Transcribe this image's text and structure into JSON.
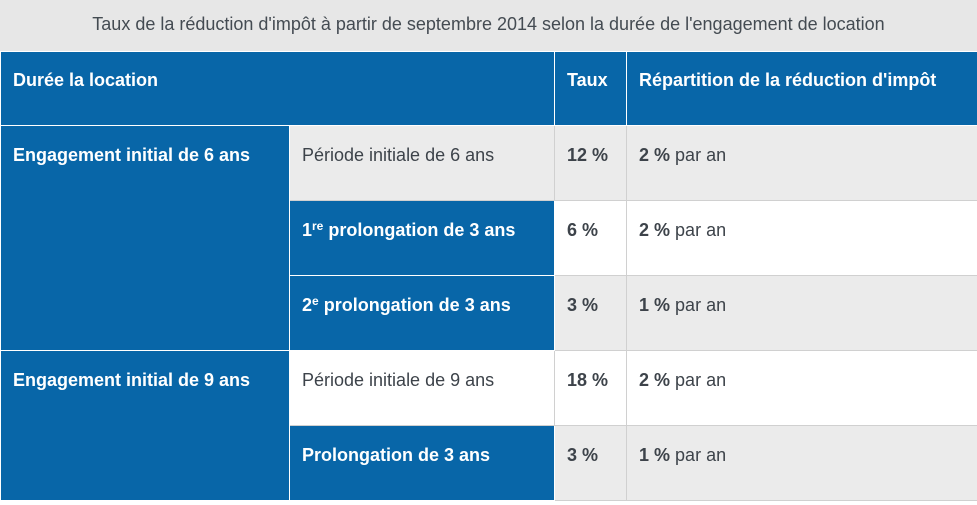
{
  "caption": "Taux de la réduction d'impôt à partir de septembre 2014 selon la durée de l'engagement de location",
  "headers": {
    "duration": "Durée la location",
    "rate": "Taux",
    "distribution": "Répartition de la réduction d'impôt"
  },
  "groups": [
    {
      "label": "Engagement initial de 6 ans",
      "rows": [
        {
          "prefix": "Période initiale de 6 ans",
          "sup": "",
          "suffix": "",
          "rate": "12 %",
          "dist_value": "2 %",
          "dist_text": " par an"
        },
        {
          "prefix": "1",
          "sup": "re",
          "suffix": " prolongation de 3 ans",
          "rate": "6 %",
          "dist_value": "2 %",
          "dist_text": " par an"
        },
        {
          "prefix": "2",
          "sup": "e",
          "suffix": " prolongation de 3 ans",
          "rate": "3 %",
          "dist_value": "1 %",
          "dist_text": " par an"
        }
      ]
    },
    {
      "label": "Engagement initial de 9 ans",
      "rows": [
        {
          "prefix": "Période initiale de 9 ans",
          "sup": "",
          "suffix": "",
          "rate": "18 %",
          "dist_value": "2 %",
          "dist_text": " par an"
        },
        {
          "prefix": "Prolongation de 3 ans",
          "sup": "",
          "suffix": "",
          "rate": "3 %",
          "dist_value": "1 %",
          "dist_text": " par an"
        }
      ]
    }
  ],
  "colors": {
    "header_blue": "#0866a8",
    "caption_bg": "#e7e7e7",
    "row_grey": "#ebebeb"
  }
}
